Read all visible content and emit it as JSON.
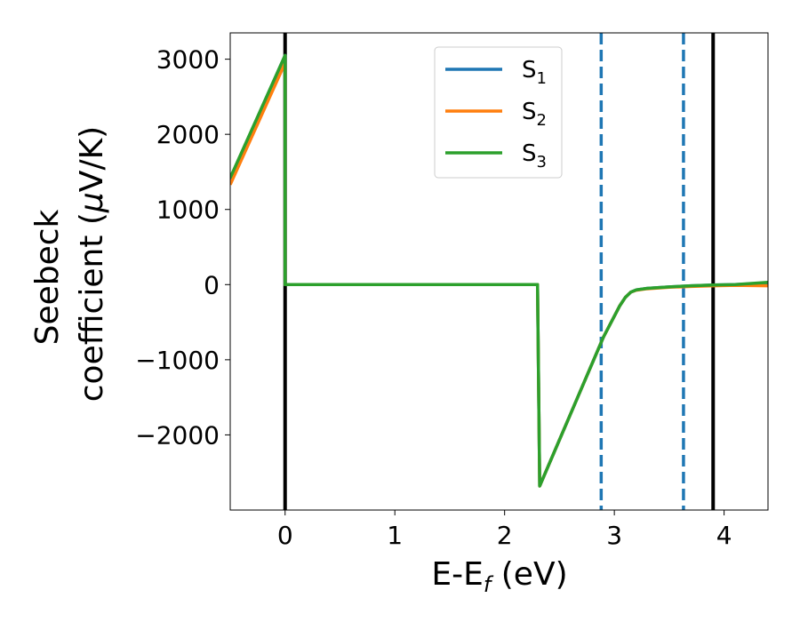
{
  "chart_data": {
    "type": "line",
    "xlabel": {
      "main": "E-E",
      "sub": "f",
      "tail": " (eV)"
    },
    "ylabel": {
      "line1": "Seebeck",
      "line2_plain": "coefficient  (",
      "line2_math": "μ",
      "line2_tail": "V/K)"
    },
    "xlim": [
      -0.5,
      4.4
    ],
    "ylim": [
      -3000,
      3350
    ],
    "x_ticks": [
      0,
      1,
      2,
      3,
      4
    ],
    "x_tick_labels": [
      "0",
      "1",
      "2",
      "3",
      "4"
    ],
    "y_ticks": [
      -2000,
      -1000,
      0,
      1000,
      2000,
      3000
    ],
    "y_tick_labels": [
      "−2000",
      "−1000",
      "0",
      "1000",
      "2000",
      "3000"
    ],
    "grid": false,
    "legend_position": "top-center",
    "series": [
      {
        "name": "S",
        "sub": "1",
        "color": "#1f77b4",
        "x": [
          -0.5,
          0.0,
          0.0,
          2.3,
          2.3,
          2.32,
          2.9,
          3.0,
          3.05,
          3.1,
          3.15,
          3.2,
          3.3,
          3.5,
          3.7,
          3.9,
          4.1,
          4.4
        ],
        "y": [
          1400,
          3050,
          0,
          0,
          0,
          -2680,
          -700,
          -420,
          -280,
          -170,
          -100,
          -70,
          -50,
          -30,
          -15,
          -5,
          0,
          20
        ]
      },
      {
        "name": "S",
        "sub": "2",
        "color": "#ff7f0e",
        "x": [
          -0.5,
          0.0,
          0.0,
          2.3,
          2.3,
          2.32,
          2.9,
          3.0,
          3.05,
          3.1,
          3.15,
          3.2,
          3.3,
          3.5,
          3.7,
          3.9,
          4.1,
          4.4
        ],
        "y": [
          1330,
          2950,
          0,
          0,
          0,
          -2680,
          -700,
          -420,
          -280,
          -170,
          -100,
          -75,
          -55,
          -35,
          -25,
          -15,
          -10,
          -15
        ]
      },
      {
        "name": "S",
        "sub": "3",
        "color": "#2ca02c",
        "x": [
          -0.5,
          0.0,
          0.0,
          2.3,
          2.3,
          2.32,
          2.9,
          3.0,
          3.05,
          3.1,
          3.15,
          3.2,
          3.3,
          3.5,
          3.7,
          3.9,
          4.1,
          4.4
        ],
        "y": [
          1420,
          3050,
          0,
          0,
          0,
          -2680,
          -700,
          -420,
          -280,
          -170,
          -100,
          -70,
          -50,
          -30,
          -15,
          -5,
          0,
          30
        ]
      }
    ],
    "vlines": [
      {
        "x": 0.0,
        "color": "#000000",
        "style": "solid"
      },
      {
        "x": 3.9,
        "color": "#000000",
        "style": "solid"
      },
      {
        "x": 2.88,
        "color": "#1f77b4",
        "style": "dashed"
      },
      {
        "x": 3.63,
        "color": "#1f77b4",
        "style": "dashed"
      }
    ]
  }
}
